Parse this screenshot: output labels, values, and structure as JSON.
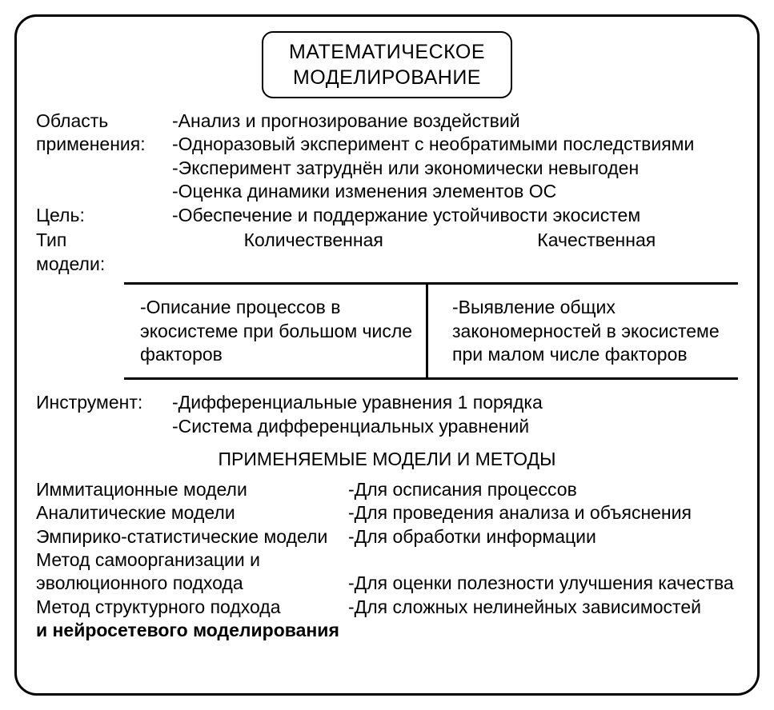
{
  "type": "infographic",
  "background_color": "#ffffff",
  "border_color": "#000000",
  "border_width": 3,
  "border_radius": 28,
  "text_color": "#000000",
  "font_family": "Arial",
  "base_fontsize": 23,
  "title": {
    "line1": "МАТЕМАТИЧЕСКОЕ",
    "line2": "МОДЕЛИРОВАНИЕ",
    "fontsize": 25,
    "box_border_width": 2,
    "box_border_radius": 14
  },
  "labels": {
    "application_area_l1": "Область",
    "application_area_l2": "применения:",
    "goal": "Цель:",
    "model_type_l1": "Тип",
    "model_type_l2": "модели:",
    "instrument": "Инструмент:"
  },
  "application_area": {
    "items": [
      "-Анализ и прогнозирование воздействий",
      "-Одноразовый эксперимент с необратимыми последствиями",
      "-Эксперимент затруднён или экономически невыгоден",
      "-Оценка динамики изменения элементов ОС"
    ]
  },
  "goal": "-Обеспечение и поддержание устойчивости экосистем",
  "model_types": {
    "left_header": "Количественная",
    "right_header": "Качественная",
    "left_body": "-Описание процессов в экосистеме при большом числе факторов",
    "right_body": "-Выявление общих закономерностей в экосистеме при малом числе факторов",
    "divider_color": "#000000",
    "divider_width": 3
  },
  "instrument": {
    "items": [
      "-Дифференциальные уравнения 1 порядка",
      "-Система дифференциальных уравнений"
    ]
  },
  "methods_section_title": "ПРИМЕНЯЕМЫЕ МОДЕЛИ И МЕТОДЫ",
  "methods": [
    {
      "name": "Иммитационные модели",
      "desc": "-Для осписания процессов"
    },
    {
      "name": "Аналитические модели",
      "desc": "-Для проведения анализа и объяснения"
    },
    {
      "name": "Эмпирико-статистические модели",
      "desc": "-Для обработки информации"
    },
    {
      "name": "Метод самоорганизации и",
      "desc": ""
    },
    {
      "name": "эволюционного подхода",
      "desc": "-Для оценки полезности улучшения качества"
    },
    {
      "name": "Метод структурного подхода",
      "desc": "-Для сложных нелинейных зависимостей"
    },
    {
      "name": "и нейросетевого моделирования",
      "desc": ""
    }
  ]
}
